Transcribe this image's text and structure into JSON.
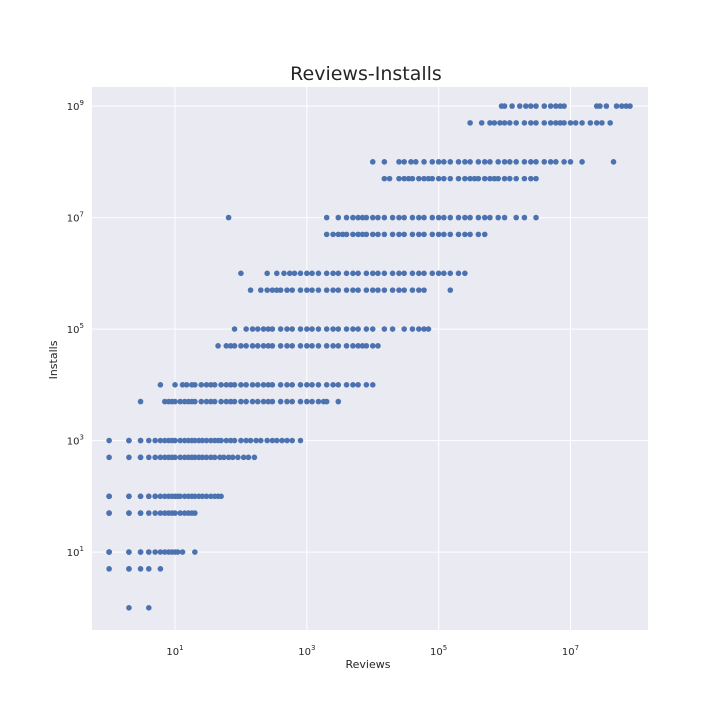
{
  "chart_data": {
    "type": "scatter",
    "title": "Reviews-Installs",
    "xlabel": "Reviews",
    "ylabel": "Installs",
    "x_scale": "log",
    "y_scale": "log",
    "xlim": [
      0.55,
      150000000
    ],
    "ylim": [
      0.4,
      2200000000
    ],
    "grid": true,
    "background_color": "#eaeaf2",
    "marker_color": "#4c72b0",
    "x_ticks": [
      {
        "base": "10",
        "exp": "1",
        "value": 10
      },
      {
        "base": "10",
        "exp": "3",
        "value": 1000
      },
      {
        "base": "10",
        "exp": "5",
        "value": 100000
      },
      {
        "base": "10",
        "exp": "7",
        "value": 10000000
      }
    ],
    "y_ticks": [
      {
        "base": "10",
        "exp": "1",
        "value": 10
      },
      {
        "base": "10",
        "exp": "3",
        "value": 1000
      },
      {
        "base": "10",
        "exp": "5",
        "value": 100000
      },
      {
        "base": "10",
        "exp": "7",
        "value": 10000000
      },
      {
        "base": "10",
        "exp": "9",
        "value": 1000000000
      }
    ],
    "x_grid": [
      10,
      1000,
      100000,
      10000000
    ],
    "y_grid": [
      10,
      1000,
      100000,
      10000000,
      1000000000
    ],
    "series": [
      {
        "installs": 1,
        "reviews": [
          2,
          4
        ]
      },
      {
        "installs": 5,
        "reviews": [
          1,
          2,
          2,
          3,
          4,
          6
        ]
      },
      {
        "installs": 10,
        "reviews": [
          1,
          1,
          1,
          2,
          2,
          3,
          3,
          4,
          4,
          5,
          6,
          7,
          8,
          9,
          10,
          11,
          13,
          20
        ]
      },
      {
        "installs": 50,
        "reviews": [
          1,
          1,
          2,
          2,
          3,
          3,
          4,
          5,
          6,
          7,
          8,
          9,
          10,
          12,
          14,
          16,
          18,
          20
        ]
      },
      {
        "installs": 100,
        "reviews": [
          1,
          1,
          1,
          2,
          2,
          3,
          3,
          4,
          4,
          5,
          5,
          6,
          7,
          8,
          9,
          10,
          11,
          12,
          14,
          16,
          18,
          20,
          23,
          26,
          30,
          35,
          40,
          45,
          50
        ]
      },
      {
        "installs": 500,
        "reviews": [
          1,
          2,
          3,
          3,
          4,
          5,
          6,
          7,
          8,
          9,
          10,
          12,
          14,
          16,
          18,
          20,
          23,
          26,
          30,
          35,
          40,
          48,
          55,
          65,
          75,
          90,
          110,
          130,
          160
        ]
      },
      {
        "installs": 1000,
        "reviews": [
          1,
          2,
          2,
          3,
          3,
          4,
          5,
          6,
          7,
          8,
          9,
          10,
          12,
          14,
          16,
          18,
          20,
          23,
          26,
          30,
          35,
          40,
          45,
          50,
          60,
          70,
          80,
          100,
          120,
          140,
          170,
          200,
          250,
          300,
          350,
          420,
          500,
          600,
          800
        ]
      },
      {
        "installs": 5000,
        "reviews": [
          3,
          7,
          8,
          9,
          10,
          12,
          14,
          16,
          18,
          20,
          25,
          30,
          35,
          40,
          50,
          60,
          70,
          80,
          100,
          120,
          150,
          180,
          220,
          260,
          300,
          400,
          500,
          600,
          800,
          1000,
          1200,
          1500,
          1800,
          2000,
          3000
        ]
      },
      {
        "installs": 10000,
        "reviews": [
          6,
          10,
          13,
          15,
          18,
          20,
          25,
          30,
          35,
          40,
          50,
          60,
          70,
          80,
          100,
          120,
          150,
          180,
          220,
          260,
          300,
          400,
          500,
          600,
          800,
          1000,
          1200,
          1500,
          2000,
          2500,
          3000,
          4000,
          5000,
          6000,
          8000,
          10000
        ]
      },
      {
        "installs": 50000,
        "reviews": [
          45,
          60,
          70,
          80,
          100,
          120,
          150,
          180,
          220,
          260,
          300,
          400,
          500,
          600,
          800,
          1000,
          1200,
          1500,
          2000,
          2500,
          3000,
          4000,
          5000,
          6000,
          7000,
          8000,
          10000,
          12000
        ]
      },
      {
        "installs": 100000,
        "reviews": [
          80,
          120,
          150,
          180,
          220,
          260,
          300,
          400,
          500,
          600,
          800,
          1000,
          1200,
          1500,
          2000,
          2500,
          3000,
          4000,
          5000,
          6000,
          8000,
          10000,
          15000,
          20000,
          30000,
          40000,
          50000,
          60000,
          70000
        ]
      },
      {
        "installs": 500000,
        "reviews": [
          140,
          200,
          250,
          300,
          350,
          400,
          500,
          600,
          800,
          1000,
          1200,
          1500,
          2000,
          2500,
          3000,
          4000,
          5000,
          6000,
          8000,
          10000,
          12000,
          15000,
          20000,
          25000,
          30000,
          40000,
          50000,
          60000,
          150000
        ]
      },
      {
        "installs": 1000000,
        "reviews": [
          100,
          250,
          350,
          450,
          550,
          650,
          800,
          1000,
          1200,
          1500,
          2000,
          2500,
          3000,
          4000,
          5000,
          6000,
          8000,
          10000,
          12000,
          15000,
          20000,
          25000,
          30000,
          40000,
          50000,
          60000,
          80000,
          100000,
          120000,
          150000,
          200000,
          250000
        ]
      },
      {
        "installs": 5000000,
        "reviews": [
          2000,
          2500,
          3000,
          3500,
          4000,
          5000,
          6000,
          7000,
          8000,
          10000,
          12000,
          15000,
          20000,
          25000,
          30000,
          40000,
          50000,
          60000,
          80000,
          100000,
          120000,
          150000,
          200000,
          250000,
          300000,
          400000,
          500000
        ]
      },
      {
        "installs": 10000000,
        "reviews": [
          65,
          2000,
          3000,
          4000,
          5000,
          6000,
          7000,
          8000,
          10000,
          12000,
          15000,
          20000,
          25000,
          30000,
          40000,
          50000,
          60000,
          80000,
          100000,
          120000,
          150000,
          200000,
          250000,
          300000,
          400000,
          500000,
          600000,
          800000,
          1000000,
          1500000,
          2000000,
          3000000
        ]
      },
      {
        "installs": 50000000,
        "reviews": [
          15000,
          18000,
          25000,
          30000,
          35000,
          40000,
          50000,
          60000,
          70000,
          80000,
          100000,
          120000,
          150000,
          200000,
          250000,
          300000,
          350000,
          400000,
          500000,
          600000,
          700000,
          800000,
          1000000,
          1200000,
          1500000,
          2000000,
          2500000,
          3000000
        ]
      },
      {
        "installs": 100000000,
        "reviews": [
          10000,
          15000,
          25000,
          30000,
          38000,
          45000,
          60000,
          80000,
          100000,
          120000,
          150000,
          200000,
          250000,
          300000,
          400000,
          500000,
          600000,
          800000,
          1000000,
          1200000,
          1500000,
          2000000,
          2500000,
          3000000,
          4000000,
          5000000,
          6000000,
          8000000,
          10000000,
          15000000,
          45000000
        ]
      },
      {
        "installs": 500000000,
        "reviews": [
          300000,
          450000,
          600000,
          700000,
          850000,
          1000000,
          1200000,
          1500000,
          2000000,
          2500000,
          3000000,
          4000000,
          5000000,
          6000000,
          7000000,
          8000000,
          10000000,
          12000000,
          15000000,
          20000000,
          25000000,
          30000000,
          40000000
        ]
      },
      {
        "installs": 1000000000,
        "reviews": [
          900000,
          1000000,
          1300000,
          1700000,
          2100000,
          2500000,
          3000000,
          4000000,
          5000000,
          6000000,
          7000000,
          8000000,
          25000000,
          28000000,
          35000000,
          50000000,
          60000000,
          70000000,
          80000000
        ]
      }
    ]
  }
}
